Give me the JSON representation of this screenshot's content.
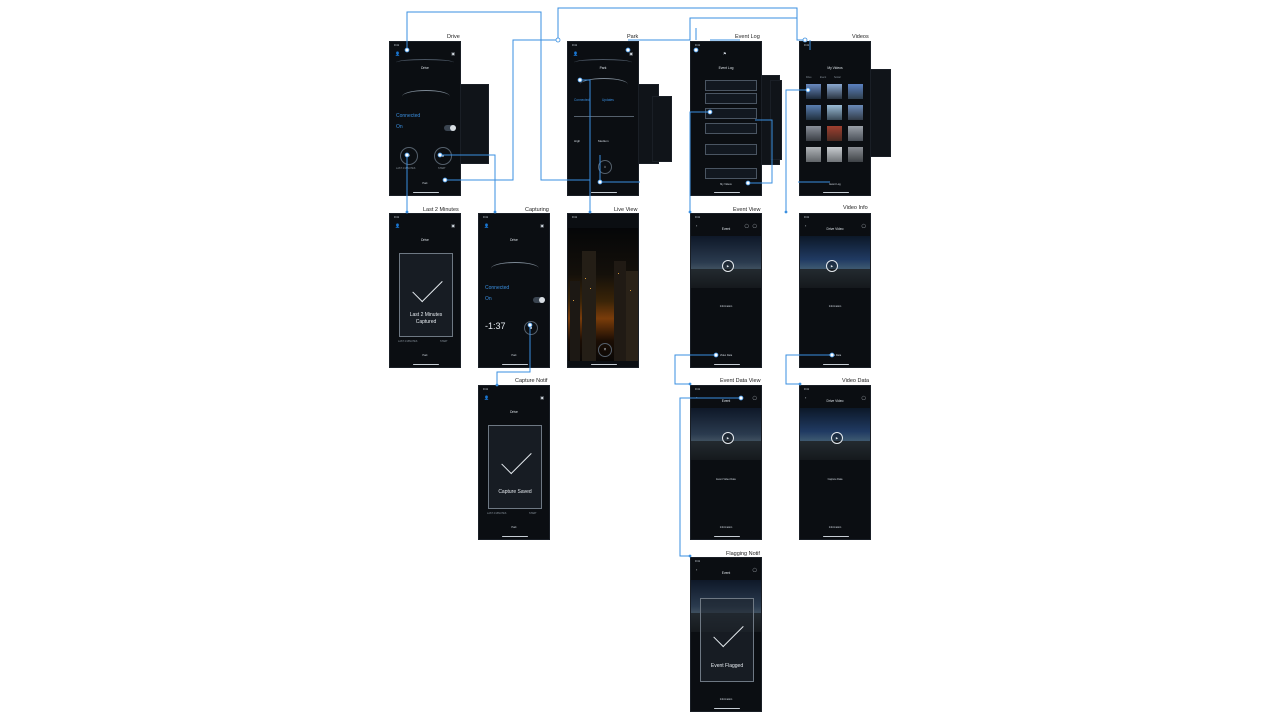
{
  "flow_labels": {
    "drive": "Drive",
    "park": "Park",
    "event_log": "Event Log",
    "videos": "Videos",
    "last2": "Last 2 Minutes",
    "capturing": "Capturing",
    "live_view": "Live View",
    "event_view": "Event View",
    "video_info": "Video Info",
    "capture_notif": "Capture Notif",
    "event_data_view": "Event Data View",
    "video_data": "Video Data",
    "flagging_notif": "Flagging Notif"
  },
  "screens": {
    "drive": {
      "title": "Drive",
      "connection_value": "Connected",
      "monitoring_value": "On",
      "left_button": "LAST 2 MINUTES",
      "right_button": "START",
      "bottom": "Park"
    },
    "last2": {
      "title": "Drive",
      "overlay_line1": "Last 2 Minutes",
      "overlay_line2": "Captured",
      "left_button": "LAST 2 MINUTES",
      "right_button": "START",
      "bottom": "Park"
    },
    "capturing": {
      "title": "Drive",
      "connection_value": "Connected",
      "monitoring_value": "On",
      "timer": "-1:37",
      "bottom": "Park"
    },
    "capture_notif": {
      "title": "Drive",
      "overlay": "Capture Saved",
      "left_button": "LAST 2 MINUTES",
      "right_button": "START",
      "bottom": "Park"
    },
    "park": {
      "title": "Park",
      "connection_value": "Connected",
      "status_value": "Updates",
      "v1": "High",
      "v2": "Medium"
    },
    "live_view": {
      "title": "Live View"
    },
    "event_log": {
      "title": "Event Log",
      "footer": "My Videos"
    },
    "videos": {
      "title": "My Videos",
      "filters": [
        "Drive",
        "Event",
        "Social"
      ],
      "footer": "Event Log"
    },
    "event_view": {
      "title": "Event",
      "info_header": "Information",
      "link": "Video Data"
    },
    "video_info": {
      "title": "Drive Video",
      "info_header": "Information",
      "link": "Video Data"
    },
    "event_data": {
      "title": "Event",
      "header": "Event Video Data",
      "footer": "Information"
    },
    "video_data": {
      "title": "Drive Video",
      "header": "Capture Data",
      "footer": "Information"
    },
    "flagging": {
      "title": "Event",
      "overlay": "Event Flagged",
      "footer": "Information"
    }
  },
  "colors": {
    "connector": "#3a8fe0",
    "screen_bg": "#0b0e12",
    "accent": "#3a8fe0"
  },
  "icons": [
    "user-icon",
    "grid-icon",
    "check-icon",
    "play-icon",
    "back-icon",
    "share-icon",
    "flag-icon"
  ]
}
